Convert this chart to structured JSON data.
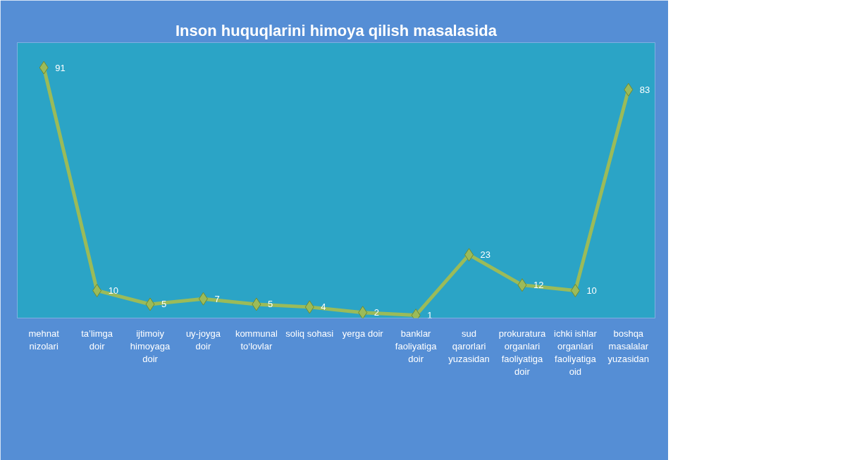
{
  "chart_data": {
    "type": "line",
    "title": "Inson huquqlarini himoya qilish masalasida",
    "categories": [
      "mehnat nizolari",
      "ta’limga doir",
      "ijtimoiy himoyaga doir",
      "uy-joyga doir",
      "kommunal to‘lovlar",
      "soliq sohasi",
      "yerga doir",
      "banklar faoliyatiga doir",
      "sud qarorlari yuzasidan",
      "prokuratura organlari faoliyatiga doir",
      "ichki ishlar organlari faoliyatiga oid",
      "boshqa masalalar yuzasidan"
    ],
    "series": [
      {
        "color": "#9bbb59",
        "values": [
          91,
          10,
          5,
          7,
          5,
          4,
          2,
          1,
          23,
          12,
          10,
          83
        ]
      }
    ],
    "marker": "diamond",
    "line_style": "solid",
    "data_labels": true,
    "tick_labels": "x",
    "grid": false
  }
}
